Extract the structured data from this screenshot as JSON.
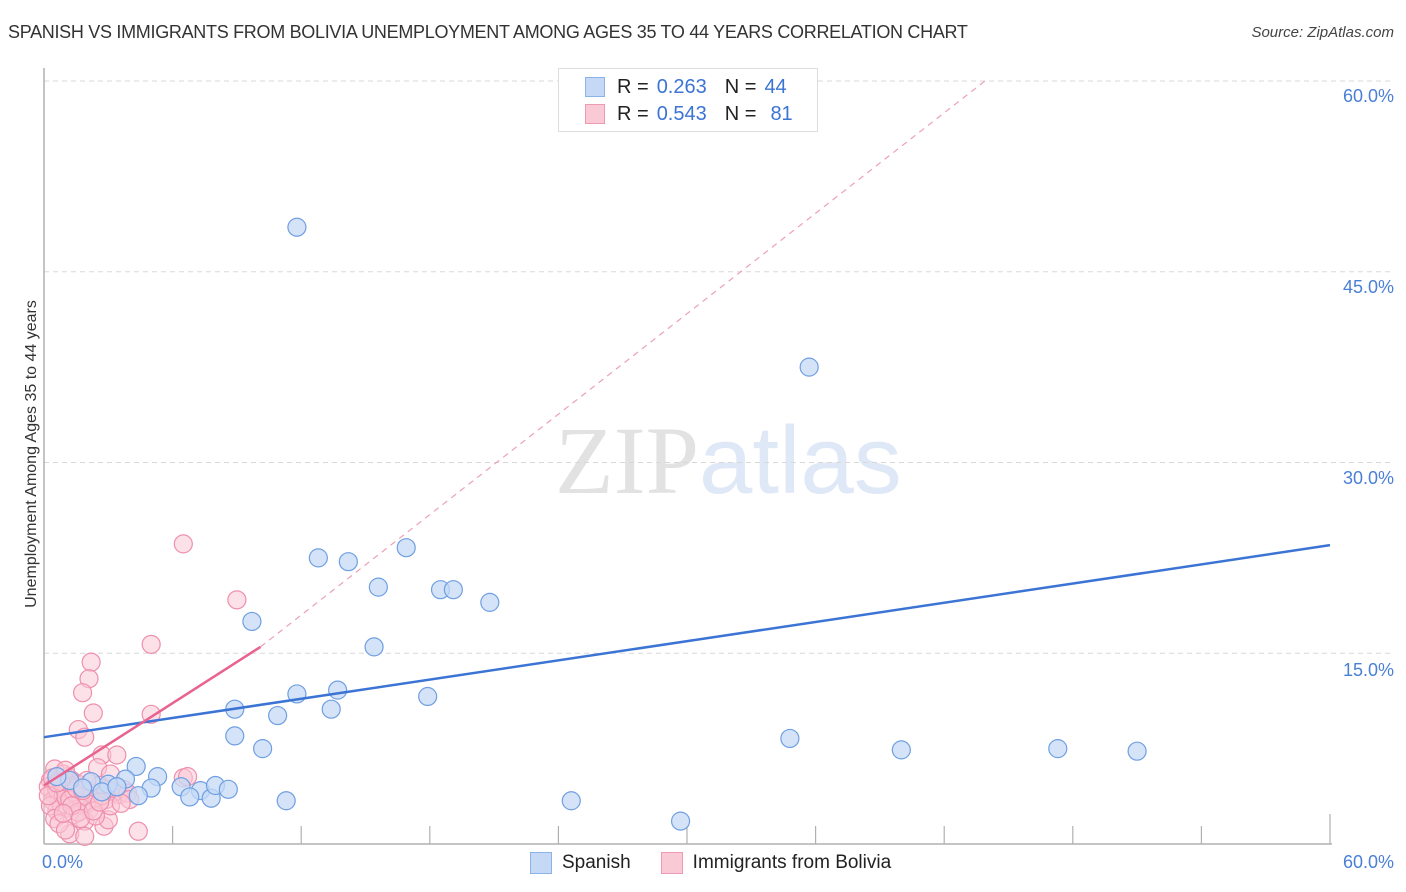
{
  "header": {
    "title": "SPANISH VS IMMIGRANTS FROM BOLIVIA UNEMPLOYMENT AMONG AGES 35 TO 44 YEARS CORRELATION CHART",
    "source": "Source: ZipAtlas.com"
  },
  "watermark": {
    "zip": "ZIP",
    "atlas": "atlas"
  },
  "legend": {
    "series": [
      {
        "name": "Spanish",
        "r_label": "R =",
        "r_value": "0.263",
        "n_label": "N =",
        "n_value": "44",
        "fill": "#c5d9f6",
        "stroke": "#8ab3ea"
      },
      {
        "name": "Immigrants from Bolivia",
        "r_label": "R =",
        "r_value": "0.543",
        "n_label": "N =",
        "n_value": "81",
        "fill": "#f9c9d6",
        "stroke": "#ef9ab4"
      }
    ]
  },
  "axes": {
    "ylabel": "Unemployment Among Ages 35 to 44 years",
    "y_ticks": [
      "60.0%",
      "45.0%",
      "30.0%",
      "15.0%"
    ],
    "x_ticks": [
      "0.0%",
      "60.0%"
    ]
  },
  "colors": {
    "blue": "#3b74d4",
    "blue_fill": "#c5d9f6",
    "pink": "#e8638f",
    "pink_fill": "#f9c9d6",
    "tick_text": "#4a7fd6"
  },
  "chart_data": {
    "type": "scatter",
    "title": "SPANISH VS IMMIGRANTS FROM BOLIVIA UNEMPLOYMENT AMONG AGES 35 TO 44 YEARS CORRELATION CHART",
    "xlabel": "",
    "ylabel": "Unemployment Among Ages 35 to 44 years",
    "xlim": [
      0,
      60
    ],
    "ylim": [
      0,
      60
    ],
    "x_tick_labels": [
      "0.0%",
      "60.0%"
    ],
    "y_tick_labels": [
      "15.0%",
      "30.0%",
      "45.0%",
      "60.0%"
    ],
    "grid": true,
    "legend_position": "top-center",
    "series": [
      {
        "name": "Spanish",
        "R": 0.263,
        "N": 44,
        "trend": {
          "x": [
            0,
            60
          ],
          "y": [
            8.4,
            23.5
          ]
        },
        "points": [
          [
            11.8,
            48.5
          ],
          [
            35.7,
            37.5
          ],
          [
            12.8,
            22.5
          ],
          [
            14.2,
            22.2
          ],
          [
            16.9,
            23.3
          ],
          [
            15.6,
            20.2
          ],
          [
            18.5,
            20.0
          ],
          [
            19.1,
            20.0
          ],
          [
            20.8,
            19.0
          ],
          [
            9.7,
            17.5
          ],
          [
            15.4,
            15.5
          ],
          [
            8.9,
            10.6
          ],
          [
            11.8,
            11.8
          ],
          [
            13.7,
            12.1
          ],
          [
            10.9,
            10.1
          ],
          [
            13.4,
            10.6
          ],
          [
            17.9,
            11.6
          ],
          [
            8.9,
            8.5
          ],
          [
            10.2,
            7.5
          ],
          [
            34.8,
            8.3
          ],
          [
            40.0,
            7.4
          ],
          [
            47.3,
            7.5
          ],
          [
            51.0,
            7.3
          ],
          [
            4.3,
            6.1
          ],
          [
            5.3,
            5.3
          ],
          [
            3.8,
            5.1
          ],
          [
            6.4,
            4.5
          ],
          [
            7.3,
            4.2
          ],
          [
            7.8,
            3.6
          ],
          [
            8.0,
            4.6
          ],
          [
            8.6,
            4.3
          ],
          [
            5.0,
            4.4
          ],
          [
            11.3,
            3.4
          ],
          [
            24.6,
            3.4
          ],
          [
            29.7,
            1.8
          ],
          [
            3.0,
            4.7
          ],
          [
            2.2,
            4.9
          ],
          [
            1.2,
            5.0
          ],
          [
            0.6,
            5.3
          ],
          [
            1.8,
            4.4
          ],
          [
            2.7,
            4.1
          ],
          [
            3.4,
            4.5
          ],
          [
            4.4,
            3.8
          ],
          [
            6.8,
            3.7
          ]
        ]
      },
      {
        "name": "Immigrants from Bolivia",
        "R": 0.543,
        "N": 81,
        "trend_solid": {
          "x": [
            0,
            10.1
          ],
          "y": [
            4.6,
            15.5
          ]
        },
        "trend_dashed": {
          "x": [
            10.1,
            43.9
          ],
          "y": [
            15.5,
            60.0
          ]
        },
        "points": [
          [
            6.5,
            23.6
          ],
          [
            9.0,
            19.2
          ],
          [
            5.0,
            15.7
          ],
          [
            2.2,
            14.3
          ],
          [
            2.1,
            13.0
          ],
          [
            1.8,
            11.9
          ],
          [
            2.3,
            10.3
          ],
          [
            5.0,
            10.2
          ],
          [
            1.6,
            9.0
          ],
          [
            1.9,
            8.4
          ],
          [
            2.7,
            7.0
          ],
          [
            3.4,
            7.0
          ],
          [
            2.5,
            6.0
          ],
          [
            3.1,
            5.5
          ],
          [
            6.5,
            5.2
          ],
          [
            6.7,
            5.3
          ],
          [
            1.1,
            5.3
          ],
          [
            0.5,
            5.9
          ],
          [
            0.3,
            5.0
          ],
          [
            0.5,
            4.6
          ],
          [
            0.4,
            4.0
          ],
          [
            0.7,
            3.6
          ],
          [
            1.0,
            4.2
          ],
          [
            1.2,
            3.9
          ],
          [
            1.5,
            3.3
          ],
          [
            1.0,
            2.8
          ],
          [
            0.6,
            2.6
          ],
          [
            1.8,
            3.0
          ],
          [
            2.1,
            2.7
          ],
          [
            2.4,
            3.6
          ],
          [
            2.9,
            3.5
          ],
          [
            3.5,
            3.9
          ],
          [
            3.3,
            4.1
          ],
          [
            3.7,
            4.3
          ],
          [
            1.3,
            5.0
          ],
          [
            1.6,
            4.7
          ],
          [
            0.2,
            4.5
          ],
          [
            0.4,
            3.4
          ],
          [
            0.8,
            3.1
          ],
          [
            1.4,
            2.3
          ],
          [
            1.9,
            1.8
          ],
          [
            1.2,
            0.8
          ],
          [
            1.9,
            0.6
          ],
          [
            2.8,
            1.4
          ],
          [
            3.0,
            1.9
          ],
          [
            4.4,
            1.0
          ],
          [
            0.9,
            5.5
          ],
          [
            1.1,
            4.8
          ],
          [
            1.7,
            3.7
          ],
          [
            2.2,
            4.0
          ],
          [
            0.6,
            4.3
          ],
          [
            0.9,
            3.8
          ],
          [
            1.4,
            4.1
          ],
          [
            1.2,
            3.5
          ],
          [
            0.3,
            3.0
          ],
          [
            0.8,
            4.9
          ],
          [
            2.6,
            4.6
          ],
          [
            3.1,
            3.0
          ],
          [
            2.0,
            3.2
          ],
          [
            1.6,
            2.5
          ],
          [
            0.5,
            2.0
          ],
          [
            2.4,
            2.2
          ],
          [
            0.7,
            1.6
          ],
          [
            1.0,
            1.1
          ],
          [
            3.9,
            4.0
          ],
          [
            4.0,
            3.5
          ],
          [
            2.7,
            3.8
          ],
          [
            1.5,
            4.4
          ],
          [
            0.4,
            5.2
          ],
          [
            1.0,
            5.8
          ],
          [
            2.0,
            5.0
          ],
          [
            2.9,
            4.3
          ],
          [
            3.6,
            3.2
          ],
          [
            0.2,
            3.8
          ],
          [
            1.3,
            3.0
          ],
          [
            1.7,
            2.0
          ],
          [
            2.3,
            2.6
          ],
          [
            0.6,
            4.8
          ],
          [
            0.9,
            2.4
          ],
          [
            1.8,
            4.2
          ],
          [
            2.6,
            3.3
          ]
        ]
      }
    ]
  }
}
